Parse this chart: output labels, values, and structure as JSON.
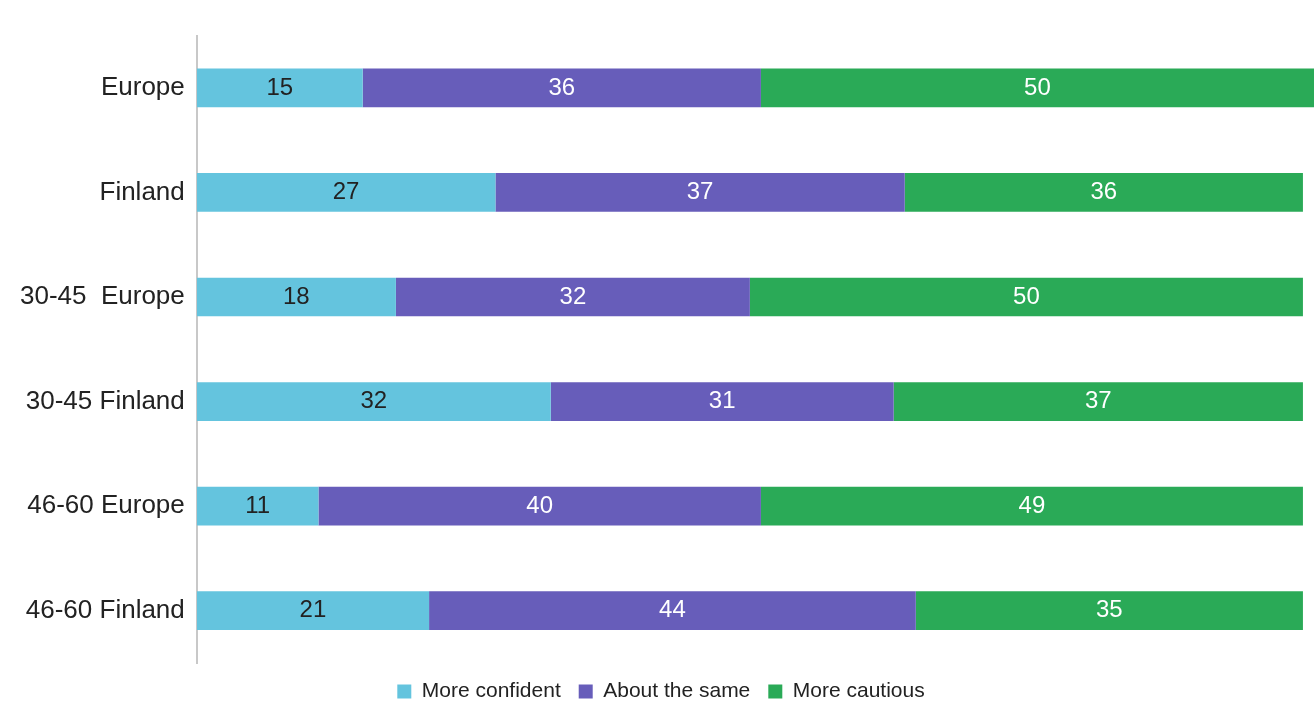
{
  "chart_data": {
    "type": "bar",
    "orientation": "horizontal",
    "stacked": true,
    "data_labels": true,
    "legend": "bottom",
    "categories": [
      "Europe",
      "Finland",
      "30-45  Europe",
      "30-45 Finland",
      "46-60 Europe",
      "46-60 Finland"
    ],
    "series": [
      {
        "name": "More confident",
        "color": "#64c4de",
        "values": [
          15,
          27,
          18,
          32,
          11,
          21
        ]
      },
      {
        "name": "About the same",
        "color": "#675dba",
        "values": [
          36,
          37,
          32,
          31,
          40,
          44
        ]
      },
      {
        "name": "More cautious",
        "color": "#2aaa57",
        "values": [
          50,
          36,
          50,
          37,
          49,
          35
        ]
      }
    ]
  }
}
